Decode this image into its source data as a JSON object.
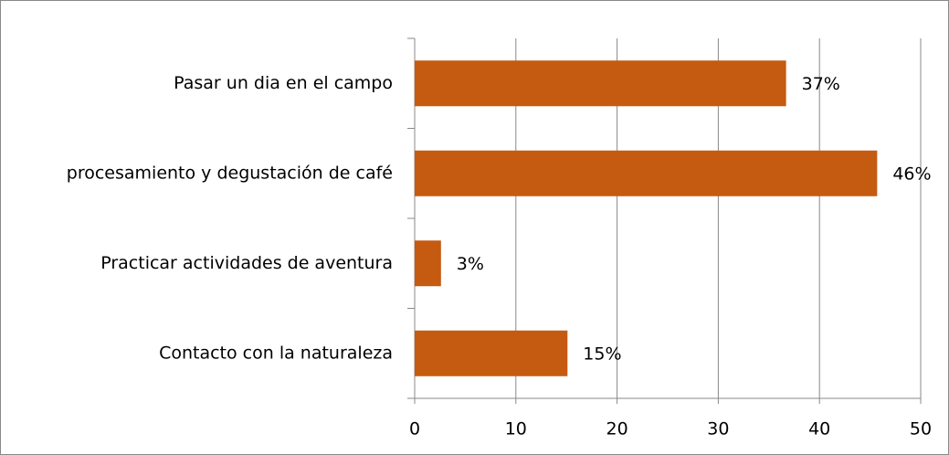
{
  "chart_data": {
    "type": "bar",
    "orientation": "horizontal",
    "categories": [
      "Pasar un dia en el campo",
      "procesamiento y degustación de café",
      "Practicar actividades de aventura",
      "Contacto con la naturaleza"
    ],
    "values": [
      36.7,
      45.7,
      2.6,
      15.1
    ],
    "value_labels": [
      "37%",
      "46%",
      "3%",
      "15%"
    ],
    "color": "#c55a11",
    "xlim": [
      0,
      50
    ],
    "xticks": [
      0,
      10,
      20,
      30,
      40,
      50
    ],
    "grid": true
  }
}
